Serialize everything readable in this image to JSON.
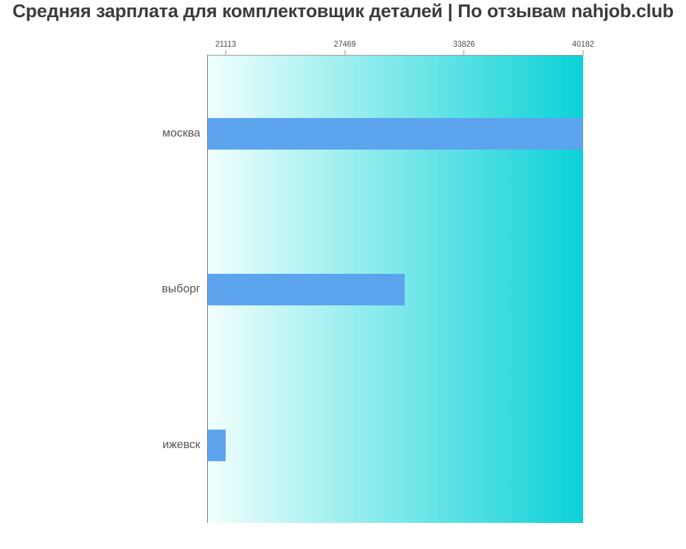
{
  "chart_data": {
    "type": "bar",
    "orientation": "horizontal",
    "title": "Средняя зарплата для комплектовщик деталей | По отзывам nahjob.club",
    "categories": [
      "москва",
      "выборг",
      "ижевск"
    ],
    "values": [
      40182,
      30648,
      21113
    ],
    "x_ticks": [
      21113,
      27469,
      33826,
      40182
    ],
    "xlim": [
      20160,
      40182
    ],
    "grid": false,
    "legend": false,
    "colors": {
      "bar": "#5da4ee",
      "plot_gradient_left": "#f1fffd",
      "plot_gradient_right": "#0cd2d7",
      "title_text": "#3c3c3c",
      "tick_text": "#4a4a4a",
      "category_text": "#555555",
      "axis_line": "#757575"
    }
  }
}
